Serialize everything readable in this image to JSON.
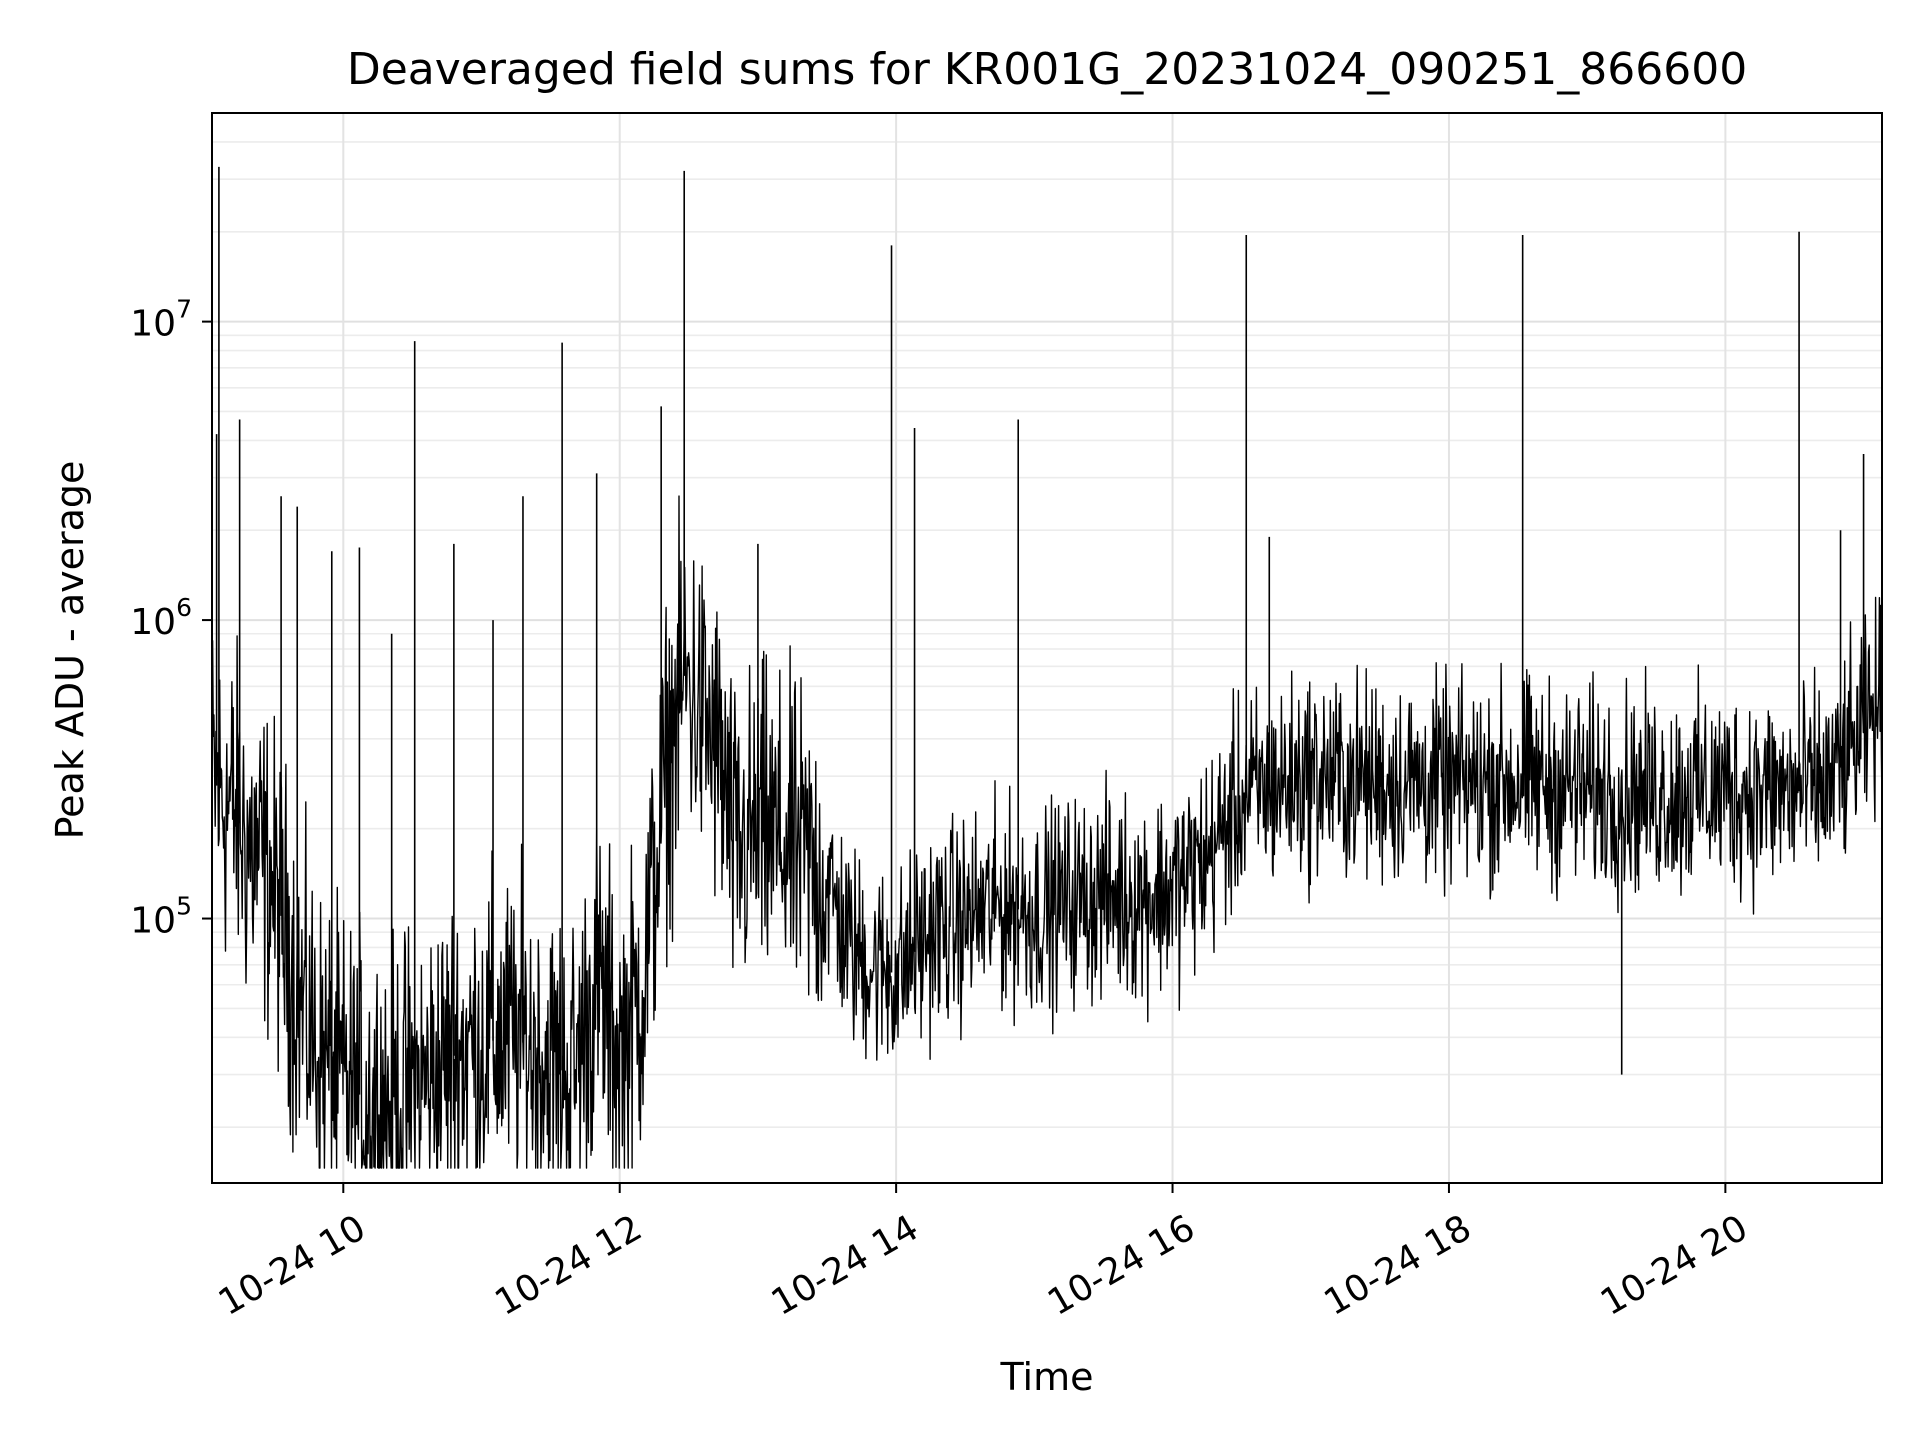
{
  "chart_data": {
    "type": "line",
    "title": "Deaveraged field sums for KR001G_20231024_090251_866600",
    "xlabel": "Time",
    "ylabel": "Peak ADU - average",
    "xlim": [
      "2023-10-24T09:03",
      "2023-10-24T21:08"
    ],
    "ylim": [
      13000,
      50000000
    ],
    "y_scale": "log",
    "grid": true,
    "line_color": "#000000",
    "x_ticks": [
      {
        "t": "2023-10-24T10:00",
        "label": "10-24 10"
      },
      {
        "t": "2023-10-24T12:00",
        "label": "10-24 12"
      },
      {
        "t": "2023-10-24T14:00",
        "label": "10-24 14"
      },
      {
        "t": "2023-10-24T16:00",
        "label": "10-24 16"
      },
      {
        "t": "2023-10-24T18:00",
        "label": "10-24 18"
      },
      {
        "t": "2023-10-24T20:00",
        "label": "10-24 20"
      }
    ],
    "y_ticks": [
      {
        "value": 100000,
        "base": "10",
        "exp": "5"
      },
      {
        "value": 1000000,
        "base": "10",
        "exp": "6"
      },
      {
        "value": 10000000,
        "base": "10",
        "exp": "7"
      }
    ],
    "series": [
      {
        "x": [
          "2023-10-24T09:03",
          "2023-10-24T09:08",
          "2023-10-24T09:13",
          "2023-10-24T09:18",
          "2023-10-24T09:23",
          "2023-10-24T09:28",
          "2023-10-24T09:35",
          "2023-10-24T09:42",
          "2023-10-24T09:50",
          "2023-10-24T09:58",
          "2023-10-24T10:10",
          "2023-10-24T10:20",
          "2023-10-24T10:30",
          "2023-10-24T10:40",
          "2023-10-24T10:50",
          "2023-10-24T11:00",
          "2023-10-24T11:10",
          "2023-10-24T11:20",
          "2023-10-24T11:30",
          "2023-10-24T11:40",
          "2023-10-24T11:50",
          "2023-10-24T12:00",
          "2023-10-24T12:10",
          "2023-10-24T12:20",
          "2023-10-24T12:28",
          "2023-10-24T12:35",
          "2023-10-24T12:43",
          "2023-10-24T12:50",
          "2023-10-24T13:00",
          "2023-10-24T13:10",
          "2023-10-24T13:20",
          "2023-10-24T13:30",
          "2023-10-24T13:40",
          "2023-10-24T13:50",
          "2023-10-24T14:00",
          "2023-10-24T14:15",
          "2023-10-24T14:30",
          "2023-10-24T14:45",
          "2023-10-24T15:00",
          "2023-10-24T15:15",
          "2023-10-24T15:30",
          "2023-10-24T15:45",
          "2023-10-24T16:00",
          "2023-10-24T16:15",
          "2023-10-24T16:30",
          "2023-10-24T16:45",
          "2023-10-24T17:00",
          "2023-10-24T17:30",
          "2023-10-24T18:00",
          "2023-10-24T18:30",
          "2023-10-24T19:00",
          "2023-10-24T19:30",
          "2023-10-24T20:00",
          "2023-10-24T20:30",
          "2023-10-24T20:45",
          "2023-10-24T21:00",
          "2023-10-24T21:08"
        ],
        "y": [
          300000,
          250000,
          230000,
          180000,
          160000,
          140000,
          90000,
          50000,
          35000,
          28000,
          25000,
          24000,
          26000,
          30000,
          36000,
          38000,
          40000,
          38000,
          32000,
          30000,
          60000,
          35000,
          60000,
          300000,
          650000,
          500000,
          350000,
          160000,
          200000,
          180000,
          160000,
          130000,
          80000,
          70000,
          65000,
          90000,
          100000,
          110000,
          105000,
          115000,
          120000,
          118000,
          125000,
          160000,
          250000,
          280000,
          300000,
          290000,
          280000,
          290000,
          270000,
          260000,
          270000,
          265000,
          280000,
          420000,
          550000
        ]
      }
    ],
    "spikes": [
      {
        "t": "2023-10-24T09:06",
        "value": 33000000
      },
      {
        "t": "2023-10-24T09:05",
        "value": 4200000
      },
      {
        "t": "2023-10-24T09:15",
        "value": 4700000
      },
      {
        "t": "2023-10-24T09:33",
        "value": 2600000
      },
      {
        "t": "2023-10-24T09:40",
        "value": 2400000
      },
      {
        "t": "2023-10-24T09:55",
        "value": 1700000
      },
      {
        "t": "2023-10-24T10:07",
        "value": 1750000
      },
      {
        "t": "2023-10-24T10:21",
        "value": 900000
      },
      {
        "t": "2023-10-24T10:31",
        "value": 8600000
      },
      {
        "t": "2023-10-24T10:48",
        "value": 1800000
      },
      {
        "t": "2023-10-24T11:05",
        "value": 1000000
      },
      {
        "t": "2023-10-24T11:18",
        "value": 2600000
      },
      {
        "t": "2023-10-24T11:35",
        "value": 8500000
      },
      {
        "t": "2023-10-24T11:50",
        "value": 3100000
      },
      {
        "t": "2023-10-24T12:18",
        "value": 5200000
      },
      {
        "t": "2023-10-24T12:28",
        "value": 32000000
      },
      {
        "t": "2023-10-24T13:00",
        "value": 1800000
      },
      {
        "t": "2023-10-24T13:58",
        "value": 18000000
      },
      {
        "t": "2023-10-24T14:08",
        "value": 4400000
      },
      {
        "t": "2023-10-24T14:53",
        "value": 4700000
      },
      {
        "t": "2023-10-24T16:32",
        "value": 19500000
      },
      {
        "t": "2023-10-24T16:42",
        "value": 1900000
      },
      {
        "t": "2023-10-24T18:32",
        "value": 19500000
      },
      {
        "t": "2023-10-24T19:15",
        "value": 30000
      },
      {
        "t": "2023-10-24T20:32",
        "value": 20000000
      },
      {
        "t": "2023-10-24T20:50",
        "value": 2000000
      },
      {
        "t": "2023-10-24T21:00",
        "value": 3600000
      }
    ]
  }
}
